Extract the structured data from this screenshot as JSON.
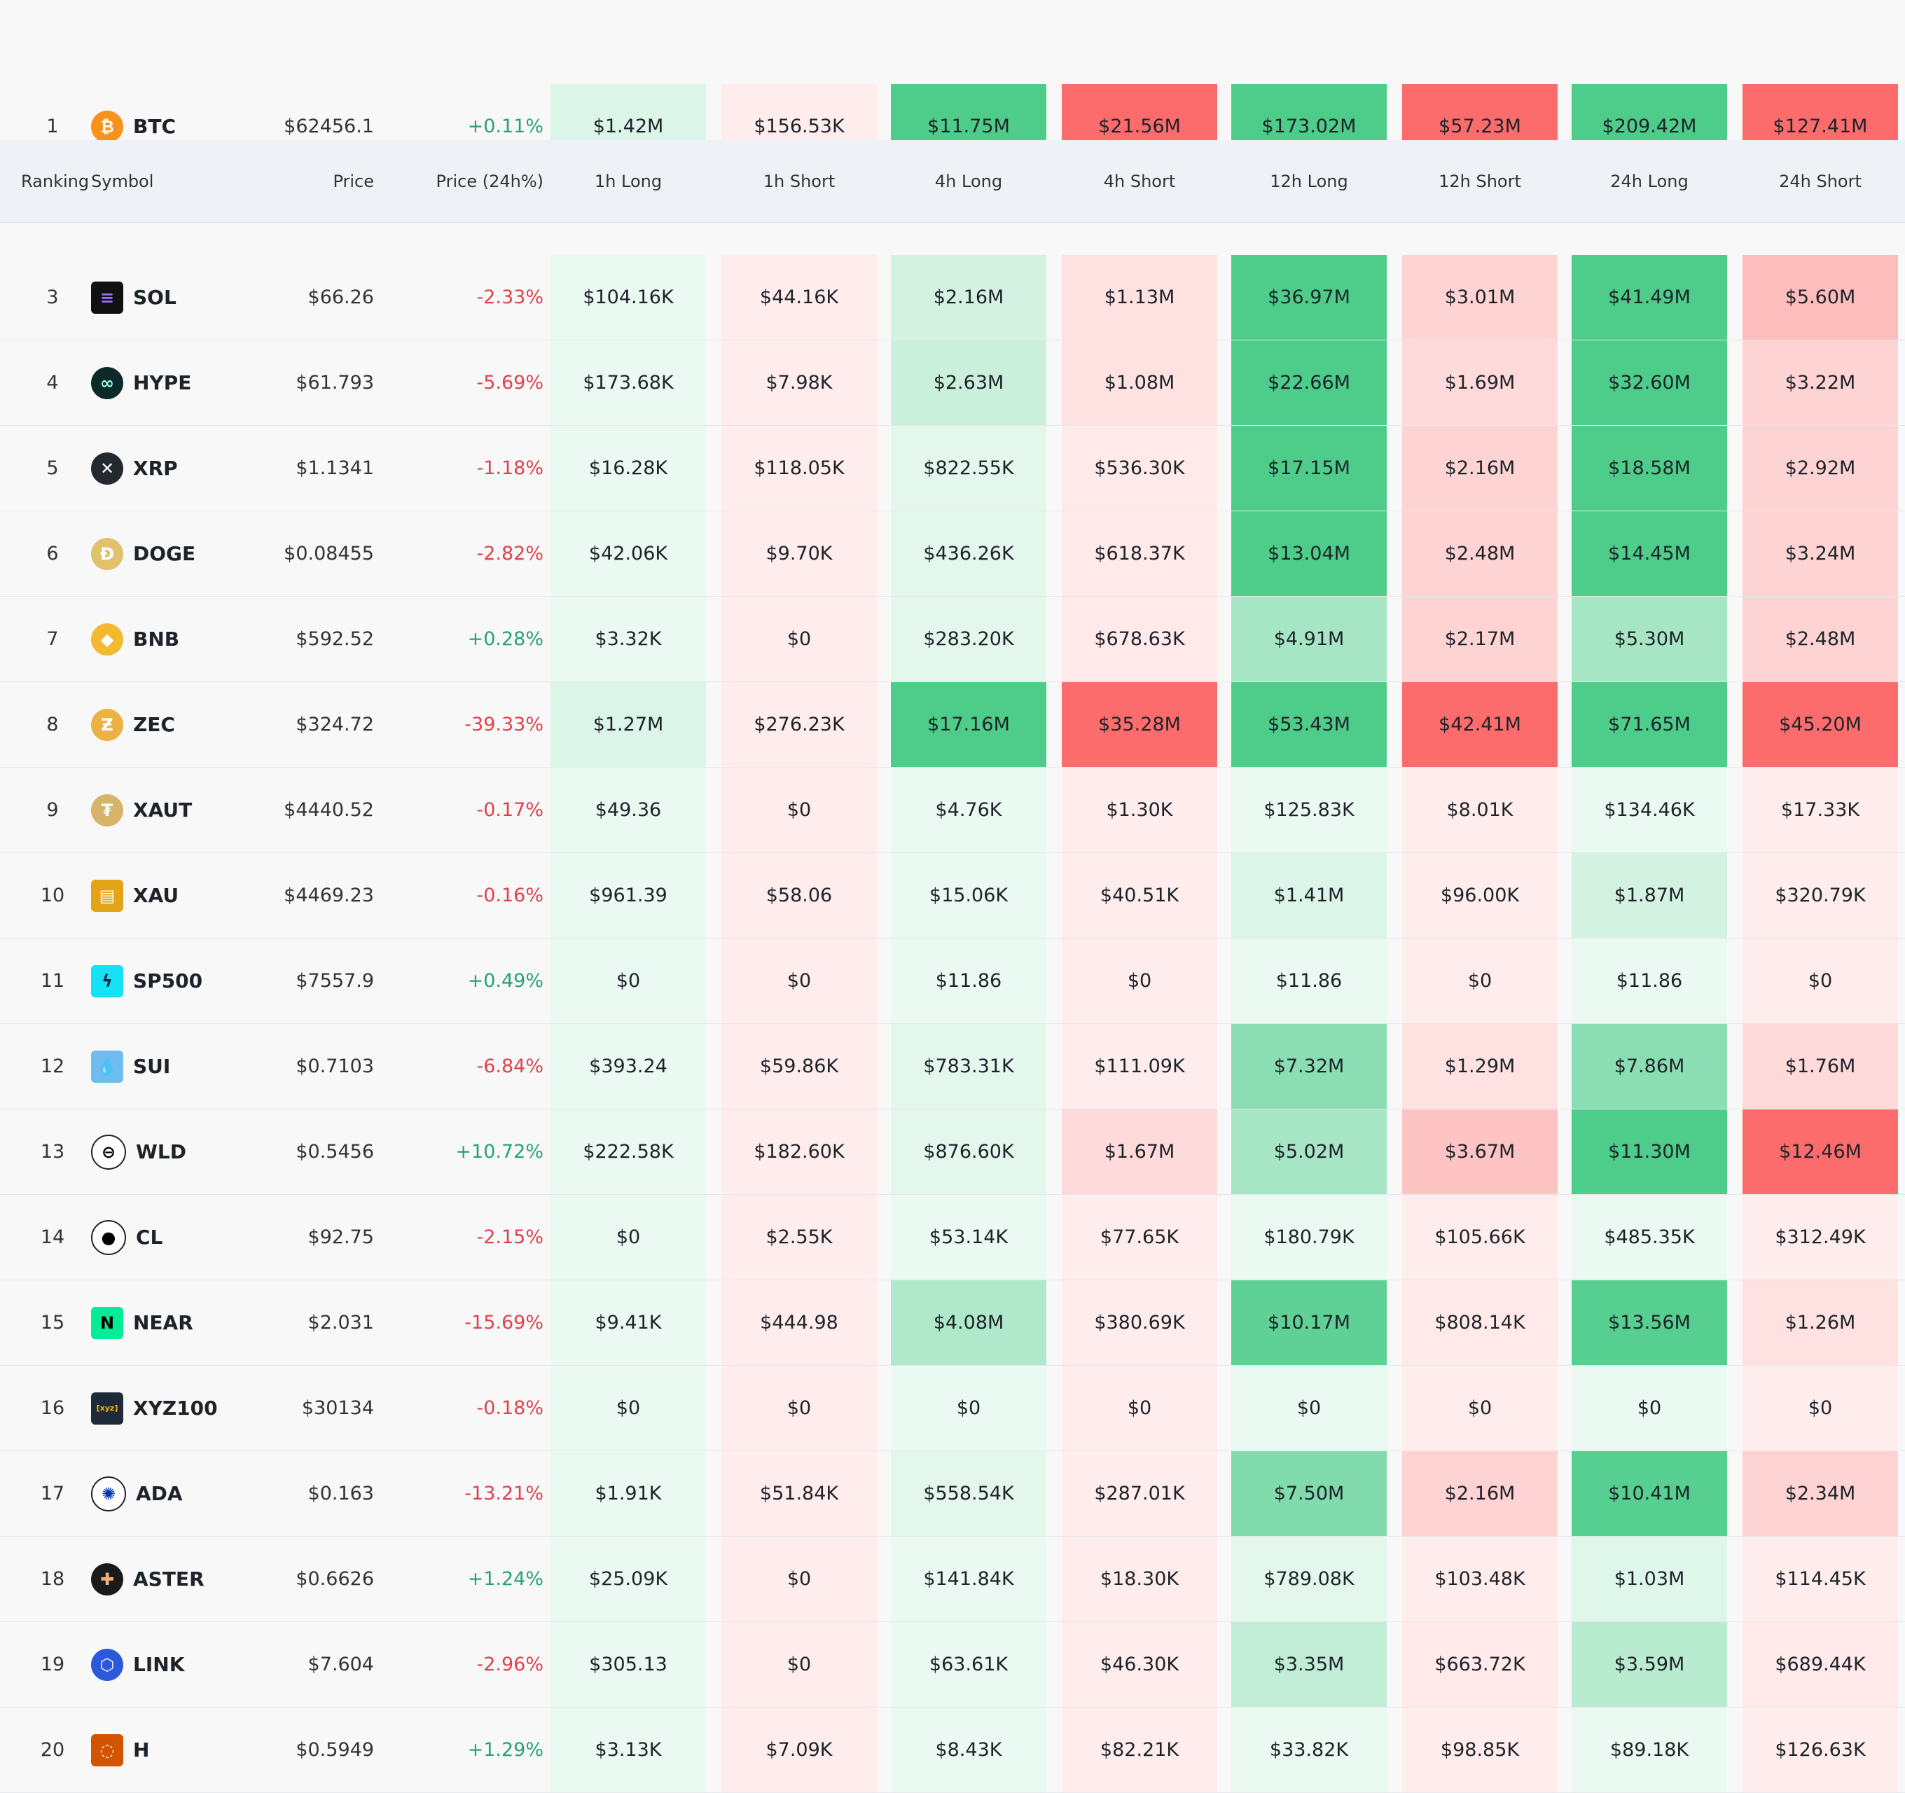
{
  "table": {
    "headers": {
      "ranking": "Ranking",
      "symbol": "Symbol",
      "price": "Price",
      "price_change": "Price (24h%)",
      "long_1h": "1h Long",
      "short_1h": "1h Short",
      "long_4h": "4h Long",
      "short_4h": "4h Short",
      "long_12h": "12h Long",
      "short_12h": "12h Short",
      "long_24h": "24h Long",
      "short_24h": "24h Short"
    },
    "rows": [
      {
        "rank": "1",
        "symbol": "BTC",
        "price": "$62456.1",
        "change": "+0.11%",
        "values": [
          "$1.42M",
          "$156.53K",
          "$11.75M",
          "$21.56M",
          "$173.02M",
          "$57.23M",
          "$209.42M",
          "$127.41M"
        ],
        "intensity": [
          0.2,
          0.12,
          1,
          1,
          1,
          1,
          1,
          1
        ]
      },
      {
        "rank": "3",
        "symbol": "SOL",
        "price": "$66.26",
        "change": "-2.33%",
        "values": [
          "$104.16K",
          "$44.16K",
          "$2.16M",
          "$1.13M",
          "$36.97M",
          "$3.01M",
          "$41.49M",
          "$5.60M"
        ],
        "intensity": [
          0.12,
          0.12,
          0.25,
          0.2,
          1,
          0.3,
          1,
          0.45
        ]
      },
      {
        "rank": "4",
        "symbol": "HYPE",
        "price": "$61.793",
        "change": "-5.69%",
        "values": [
          "$173.68K",
          "$7.98K",
          "$2.63M",
          "$1.08M",
          "$22.66M",
          "$1.69M",
          "$32.60M",
          "$3.22M"
        ],
        "intensity": [
          0.12,
          0.12,
          0.3,
          0.2,
          1,
          0.25,
          1,
          0.3
        ]
      },
      {
        "rank": "5",
        "symbol": "XRP",
        "price": "$1.1341",
        "change": "-1.18%",
        "values": [
          "$16.28K",
          "$118.05K",
          "$822.55K",
          "$536.30K",
          "$17.15M",
          "$2.16M",
          "$18.58M",
          "$2.92M"
        ],
        "intensity": [
          0.12,
          0.12,
          0.15,
          0.15,
          1,
          0.3,
          1,
          0.3
        ]
      },
      {
        "rank": "6",
        "symbol": "DOGE",
        "price": "$0.08455",
        "change": "-2.82%",
        "values": [
          "$42.06K",
          "$9.70K",
          "$436.26K",
          "$618.37K",
          "$13.04M",
          "$2.48M",
          "$14.45M",
          "$3.24M"
        ],
        "intensity": [
          0.12,
          0.12,
          0.15,
          0.15,
          1,
          0.3,
          1,
          0.3
        ]
      },
      {
        "rank": "7",
        "symbol": "BNB",
        "price": "$592.52",
        "change": "+0.28%",
        "values": [
          "$3.32K",
          "$0",
          "$283.20K",
          "$678.63K",
          "$4.91M",
          "$2.17M",
          "$5.30M",
          "$2.48M"
        ],
        "intensity": [
          0.12,
          0.12,
          0.15,
          0.15,
          0.5,
          0.3,
          0.5,
          0.3
        ]
      },
      {
        "rank": "8",
        "symbol": "ZEC",
        "price": "$324.72",
        "change": "-39.33%",
        "values": [
          "$1.27M",
          "$276.23K",
          "$17.16M",
          "$35.28M",
          "$53.43M",
          "$42.41M",
          "$71.65M",
          "$45.20M"
        ],
        "intensity": [
          0.2,
          0.12,
          1,
          1,
          1,
          1,
          1,
          1
        ]
      },
      {
        "rank": "9",
        "symbol": "XAUT",
        "price": "$4440.52",
        "change": "-0.17%",
        "values": [
          "$49.36",
          "$0",
          "$4.76K",
          "$1.30K",
          "$125.83K",
          "$8.01K",
          "$134.46K",
          "$17.33K"
        ],
        "intensity": [
          0.12,
          0.12,
          0.12,
          0.12,
          0.12,
          0.12,
          0.12,
          0.12
        ]
      },
      {
        "rank": "10",
        "symbol": "XAU",
        "price": "$4469.23",
        "change": "-0.16%",
        "values": [
          "$961.39",
          "$58.06",
          "$15.06K",
          "$40.51K",
          "$1.41M",
          "$96.00K",
          "$1.87M",
          "$320.79K"
        ],
        "intensity": [
          0.12,
          0.12,
          0.12,
          0.12,
          0.2,
          0.12,
          0.25,
          0.12
        ]
      },
      {
        "rank": "11",
        "symbol": "SP500",
        "price": "$7557.9",
        "change": "+0.49%",
        "values": [
          "$0",
          "$0",
          "$11.86",
          "$0",
          "$11.86",
          "$0",
          "$11.86",
          "$0"
        ],
        "intensity": [
          0.12,
          0.12,
          0.12,
          0.12,
          0.12,
          0.12,
          0.12,
          0.12
        ]
      },
      {
        "rank": "12",
        "symbol": "SUI",
        "price": "$0.7103",
        "change": "-6.84%",
        "values": [
          "$393.24",
          "$59.86K",
          "$783.31K",
          "$111.09K",
          "$7.32M",
          "$1.29M",
          "$7.86M",
          "$1.76M"
        ],
        "intensity": [
          0.12,
          0.12,
          0.15,
          0.12,
          0.65,
          0.2,
          0.65,
          0.25
        ]
      },
      {
        "rank": "13",
        "symbol": "WLD",
        "price": "$0.5456",
        "change": "+10.72%",
        "values": [
          "$222.58K",
          "$182.60K",
          "$876.60K",
          "$1.67M",
          "$5.02M",
          "$3.67M",
          "$11.30M",
          "$12.46M"
        ],
        "intensity": [
          0.12,
          0.12,
          0.15,
          0.25,
          0.5,
          0.4,
          1,
          1
        ]
      },
      {
        "rank": "14",
        "symbol": "CL",
        "price": "$92.75",
        "change": "-2.15%",
        "values": [
          "$0",
          "$2.55K",
          "$53.14K",
          "$77.65K",
          "$180.79K",
          "$105.66K",
          "$485.35K",
          "$312.49K"
        ],
        "intensity": [
          0.12,
          0.12,
          0.12,
          0.12,
          0.12,
          0.12,
          0.12,
          0.12
        ]
      },
      {
        "rank": "15",
        "symbol": "NEAR",
        "price": "$2.031",
        "change": "-15.69%",
        "values": [
          "$9.41K",
          "$444.98",
          "$4.08M",
          "$380.69K",
          "$10.17M",
          "$808.14K",
          "$13.56M",
          "$1.26M"
        ],
        "intensity": [
          0.12,
          0.12,
          0.45,
          0.12,
          0.9,
          0.15,
          0.95,
          0.2
        ]
      },
      {
        "rank": "16",
        "symbol": "XYZ100",
        "price": "$30134",
        "change": "-0.18%",
        "values": [
          "$0",
          "$0",
          "$0",
          "$0",
          "$0",
          "$0",
          "$0",
          "$0"
        ],
        "intensity": [
          0.12,
          0.12,
          0.12,
          0.12,
          0.12,
          0.12,
          0.12,
          0.12
        ]
      },
      {
        "rank": "17",
        "symbol": "ADA",
        "price": "$0.163",
        "change": "-13.21%",
        "values": [
          "$1.91K",
          "$51.84K",
          "$558.54K",
          "$287.01K",
          "$7.50M",
          "$2.16M",
          "$10.41M",
          "$2.34M"
        ],
        "intensity": [
          0.12,
          0.12,
          0.15,
          0.12,
          0.7,
          0.3,
          0.95,
          0.3
        ]
      },
      {
        "rank": "18",
        "symbol": "ASTER",
        "price": "$0.6626",
        "change": "+1.24%",
        "values": [
          "$25.09K",
          "$0",
          "$141.84K",
          "$18.30K",
          "$789.08K",
          "$103.48K",
          "$1.03M",
          "$114.45K"
        ],
        "intensity": [
          0.12,
          0.12,
          0.12,
          0.12,
          0.15,
          0.12,
          0.18,
          0.12
        ]
      },
      {
        "rank": "19",
        "symbol": "LINK",
        "price": "$7.604",
        "change": "-2.96%",
        "values": [
          "$305.13",
          "$0",
          "$63.61K",
          "$46.30K",
          "$3.35M",
          "$663.72K",
          "$3.59M",
          "$689.44K"
        ],
        "intensity": [
          0.12,
          0.12,
          0.12,
          0.12,
          0.35,
          0.15,
          0.4,
          0.15
        ]
      },
      {
        "rank": "20",
        "symbol": "H",
        "price": "$0.5949",
        "change": "+1.29%",
        "values": [
          "$3.13K",
          "$7.09K",
          "$8.43K",
          "$82.21K",
          "$33.82K",
          "$98.85K",
          "$89.18K",
          "$126.63K"
        ],
        "intensity": [
          0.12,
          0.12,
          0.12,
          0.12,
          0.12,
          0.12,
          0.12,
          0.12
        ]
      }
    ]
  },
  "icons": {
    "BTC": {
      "name": "bitcoin-icon",
      "glyph": "₿",
      "bg": "#f7931a",
      "fg": "#ffffff",
      "shape": "circle"
    },
    "SOL": {
      "name": "solana-icon",
      "glyph": "≡",
      "bg": "#111111",
      "fg": "#9b6cff",
      "shape": "square"
    },
    "HYPE": {
      "name": "hyperliquid-icon",
      "glyph": "∞",
      "bg": "#0d2a2a",
      "fg": "#97fce4",
      "shape": "circle"
    },
    "XRP": {
      "name": "xrp-icon",
      "glyph": "✕",
      "bg": "#23292f",
      "fg": "#ffffff",
      "shape": "circle"
    },
    "DOGE": {
      "name": "dogecoin-icon",
      "glyph": "Ð",
      "bg": "#e1c16b",
      "fg": "#ffffff",
      "shape": "circle"
    },
    "BNB": {
      "name": "bnb-icon",
      "glyph": "◆",
      "bg": "#f3ba2f",
      "fg": "#ffffff",
      "shape": "circle"
    },
    "ZEC": {
      "name": "zcash-icon",
      "glyph": "Ƶ",
      "bg": "#ecb244",
      "fg": "#ffffff",
      "shape": "circle"
    },
    "XAUT": {
      "name": "tether-gold-icon",
      "glyph": "₮",
      "bg": "#d6b46a",
      "fg": "#ffffff",
      "shape": "circle"
    },
    "XAU": {
      "name": "gold-bars-icon",
      "glyph": "▤",
      "bg": "#e3a416",
      "fg": "#ffffff",
      "shape": "square"
    },
    "SP500": {
      "name": "sp500-icon",
      "glyph": "ϟ",
      "bg": "#16e2f5",
      "fg": "#0a2a4a",
      "shape": "square"
    },
    "SUI": {
      "name": "sui-icon",
      "glyph": "💧",
      "bg": "#6fbcf0",
      "fg": "#ffffff",
      "shape": "square"
    },
    "WLD": {
      "name": "worldcoin-icon",
      "glyph": "⊖",
      "bg": "#ffffff",
      "fg": "#000000",
      "shape": "circle"
    },
    "CL": {
      "name": "crude-oil-icon",
      "glyph": "●",
      "bg": "#ffffff",
      "fg": "#000000",
      "shape": "circle"
    },
    "NEAR": {
      "name": "near-icon",
      "glyph": "N",
      "bg": "#00ec97",
      "fg": "#000000",
      "shape": "square"
    },
    "XYZ100": {
      "name": "xyz100-icon",
      "glyph": "[xyz]",
      "bg": "#1f2a38",
      "fg": "#f0b90b",
      "shape": "square"
    },
    "ADA": {
      "name": "cardano-icon",
      "glyph": "✺",
      "bg": "#ffffff",
      "fg": "#0033ad",
      "shape": "circle"
    },
    "ASTER": {
      "name": "aster-icon",
      "glyph": "✚",
      "bg": "#1a1a1a",
      "fg": "#f0b27a",
      "shape": "circle"
    },
    "LINK": {
      "name": "chainlink-icon",
      "glyph": "⬡",
      "bg": "#2a5ada",
      "fg": "#ffffff",
      "shape": "circle"
    },
    "H": {
      "name": "h-token-icon",
      "glyph": "◌",
      "bg": "#d35400",
      "fg": "#ffffff",
      "shape": "square"
    }
  },
  "colors": {
    "long": "#4dcc8a",
    "short": "#fc6c6c",
    "positive_text": "#26a17b",
    "negative_text": "#e0424b",
    "header_bg": "#eef2f6"
  }
}
